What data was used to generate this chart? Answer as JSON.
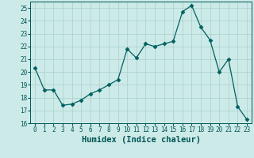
{
  "x": [
    0,
    1,
    2,
    3,
    4,
    5,
    6,
    7,
    8,
    9,
    10,
    11,
    12,
    13,
    14,
    15,
    16,
    17,
    18,
    19,
    20,
    21,
    22,
    23
  ],
  "y": [
    20.3,
    18.6,
    18.6,
    17.4,
    17.5,
    17.8,
    18.3,
    18.6,
    19.0,
    19.4,
    21.8,
    21.1,
    22.2,
    22.0,
    22.2,
    22.4,
    24.7,
    25.2,
    23.5,
    22.5,
    20.0,
    21.0,
    17.3,
    16.3
  ],
  "line_color": "#006060",
  "marker": "D",
  "marker_size": 2.5,
  "bg_color": "#cceae8",
  "grid_color": "#aacfcc",
  "xlabel": "Humidex (Indice chaleur)",
  "xlim": [
    -0.5,
    23.5
  ],
  "ylim": [
    16,
    25.5
  ],
  "yticks": [
    16,
    17,
    18,
    19,
    20,
    21,
    22,
    23,
    24,
    25
  ],
  "xticks": [
    0,
    1,
    2,
    3,
    4,
    5,
    6,
    7,
    8,
    9,
    10,
    11,
    12,
    13,
    14,
    15,
    16,
    17,
    18,
    19,
    20,
    21,
    22,
    23
  ],
  "tick_fontsize": 5.5,
  "xlabel_fontsize": 7.5,
  "label_color": "#005555"
}
